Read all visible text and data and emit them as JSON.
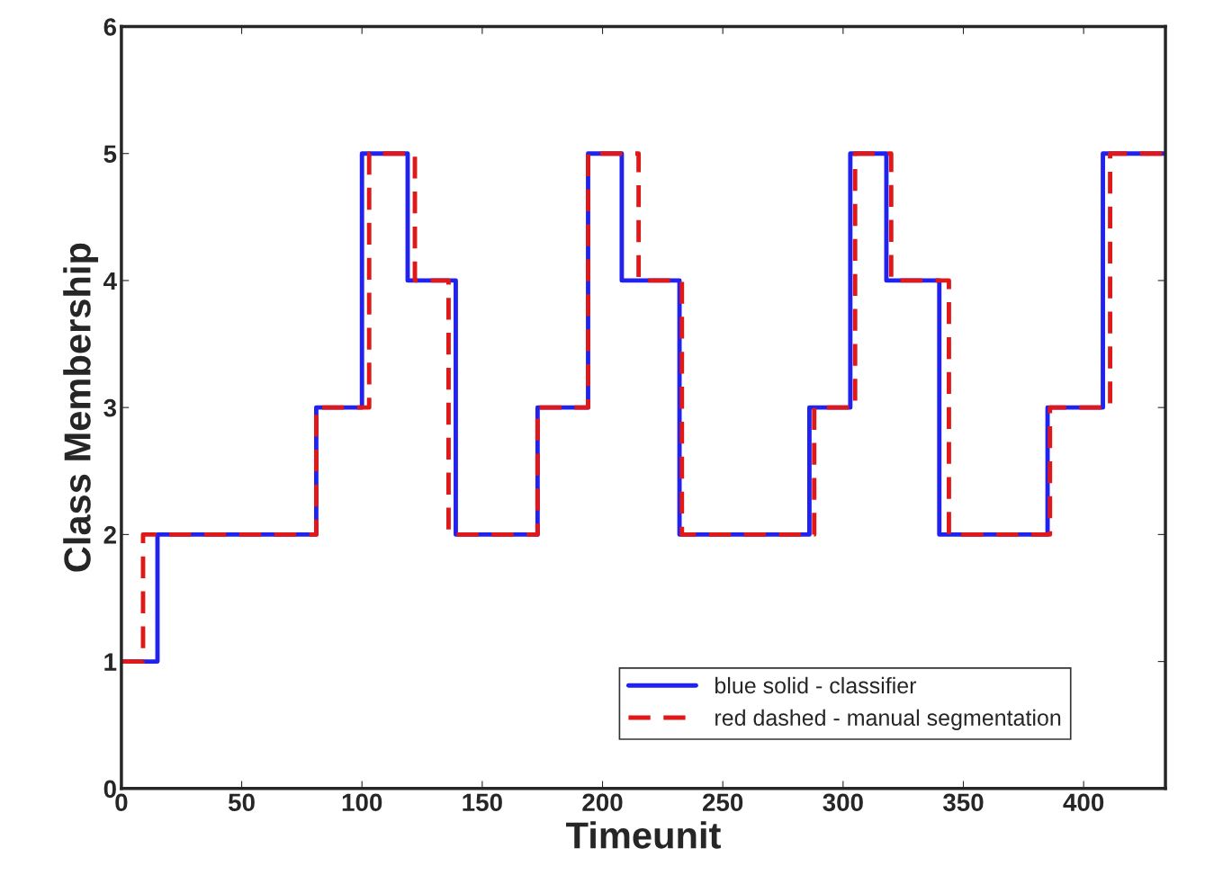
{
  "chart_data": {
    "type": "step",
    "xlabel": "Timeunit",
    "ylabel": "Class Membership",
    "xlim": [
      0,
      434
    ],
    "ylim": [
      0,
      6
    ],
    "xticks": [
      0,
      50,
      100,
      150,
      200,
      250,
      300,
      350,
      400
    ],
    "yticks": [
      0,
      1,
      2,
      3,
      4,
      5,
      6
    ],
    "grid": false,
    "legend": "bottom right",
    "series": [
      {
        "name": "blue solid - classifier",
        "color": "#2222ee",
        "line_style": "solid",
        "x": [
          0,
          15,
          81,
          100,
          119,
          139,
          173,
          194,
          208,
          232,
          286,
          303,
          318,
          340,
          385,
          408,
          434
        ],
        "values": [
          1,
          2,
          3,
          5,
          4,
          2,
          3,
          5,
          4,
          2,
          3,
          5,
          4,
          2,
          3,
          5,
          5
        ]
      },
      {
        "name": "red dashed - manual segmentation",
        "color": "#e01818",
        "line_style": "dashed",
        "x": [
          0,
          9,
          81,
          103,
          122,
          136,
          173,
          194,
          215,
          233,
          288,
          305,
          320,
          344,
          386,
          411,
          434
        ],
        "values": [
          1,
          2,
          3,
          5,
          4,
          2,
          3,
          5,
          4,
          2,
          3,
          5,
          4,
          2,
          3,
          5,
          5
        ]
      }
    ]
  }
}
